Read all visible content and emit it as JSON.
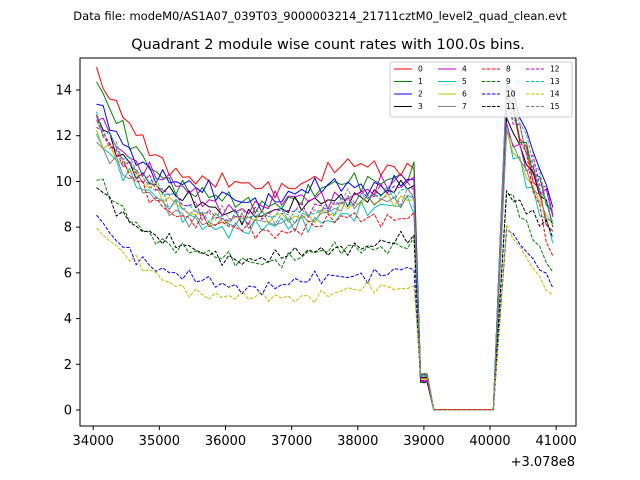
{
  "chart_data": {
    "type": "line",
    "suptitle": "Data file: modeM0/AS1A07_039T03_9000003214_21711cztM0_level2_quad_clean.evt",
    "title": "Quadrant 2 module wise count rates with 100.0s bins.",
    "xlabel": "",
    "ylabel": "",
    "x_offset_label": "+3.078e8",
    "xlim": [
      33800,
      41300
    ],
    "ylim": [
      -0.7,
      15.4
    ],
    "xticks": [
      34000,
      35000,
      36000,
      37000,
      38000,
      39000,
      40000,
      41000
    ],
    "xtick_labels": [
      "34000",
      "35000",
      "36000",
      "37000",
      "38000",
      "39000",
      "40000",
      "41000"
    ],
    "yticks": [
      0,
      2,
      4,
      6,
      8,
      10,
      12,
      14
    ],
    "ytick_labels": [
      "0",
      "2",
      "4",
      "6",
      "8",
      "10",
      "12",
      "14"
    ],
    "legend_position": "top-right",
    "x": [
      34050,
      34150,
      34250,
      34350,
      34450,
      34550,
      34650,
      34750,
      34850,
      34950,
      35050,
      35150,
      35250,
      35350,
      35450,
      35550,
      35650,
      35750,
      35850,
      35950,
      36050,
      36150,
      36250,
      36350,
      36450,
      36550,
      36650,
      36750,
      36850,
      36950,
      37050,
      37150,
      37250,
      37350,
      37450,
      37550,
      37650,
      37750,
      37850,
      37950,
      38050,
      38150,
      38250,
      38350,
      38450,
      38550,
      38650,
      38750,
      38850,
      38950,
      39050,
      39150,
      39250,
      39350,
      39450,
      39550,
      39650,
      39750,
      39850,
      39950,
      40050,
      40150,
      40250,
      40350,
      40450,
      40550,
      40650,
      40750,
      40850,
      40950
    ],
    "series": [
      {
        "name": "0",
        "color": "#ff0000",
        "dash": "solid",
        "base": 10.3,
        "dip": 1.0,
        "gap": 0.2,
        "n_amp": 0.22,
        "n_phase": 0.3,
        "start": 14.6,
        "wave_amp": 0.2,
        "pre_gap": 10.8,
        "gap_base": 0.12,
        "post_peak": 14.0,
        "post_end": 7.5
      },
      {
        "name": "1",
        "color": "#008000",
        "dash": "solid",
        "base": 9.3,
        "dip": 0.8,
        "gap": 0.2,
        "n_amp": 0.25,
        "n_phase": 1.1,
        "start": 14.2,
        "wave_amp": 0.15,
        "pre_gap": 10.5,
        "gap_base": 0.1,
        "post_peak": 13.5,
        "post_end": 8.5
      },
      {
        "name": "2",
        "color": "#0000ff",
        "dash": "solid",
        "base": 9.7,
        "dip": 0.8,
        "gap": 0.2,
        "n_amp": 0.25,
        "n_phase": 2.0,
        "start": 13.3,
        "wave_amp": 0.2,
        "pre_gap": 10.0,
        "gap_base": 0.1,
        "post_peak": 14.5,
        "post_end": 9.0
      },
      {
        "name": "3",
        "color": "#000000",
        "dash": "solid",
        "base": 8.9,
        "dip": 0.7,
        "gap": 0.2,
        "n_amp": 0.22,
        "n_phase": 2.7,
        "start": 12.8,
        "wave_amp": 0.15,
        "pre_gap": 9.8,
        "gap_base": 0.1,
        "post_peak": 12.8,
        "post_end": 8.3
      },
      {
        "name": "4",
        "color": "#c000c0",
        "dash": "solid",
        "base": 9.1,
        "dip": 0.6,
        "gap": 0.2,
        "n_amp": 0.25,
        "n_phase": 3.5,
        "start": 13.2,
        "wave_amp": 0.25,
        "pre_gap": 10.0,
        "gap_base": 0.1,
        "post_peak": 12.3,
        "post_end": 8.8
      },
      {
        "name": "5",
        "color": "#00bfbf",
        "dash": "solid",
        "base": 8.2,
        "dip": 0.7,
        "gap": 0.2,
        "n_amp": 0.25,
        "n_phase": 4.2,
        "start": 12.2,
        "wave_amp": 0.15,
        "pre_gap": 9.0,
        "gap_base": 0.1,
        "post_peak": 12.0,
        "post_end": 7.5
      },
      {
        "name": "6",
        "color": "#bfbf00",
        "dash": "solid",
        "base": 8.5,
        "dip": 0.6,
        "gap": 0.2,
        "n_amp": 0.2,
        "n_phase": 5.0,
        "start": 12.3,
        "wave_amp": 0.15,
        "pre_gap": 9.3,
        "gap_base": 0.1,
        "post_peak": 12.0,
        "post_end": 8.0
      },
      {
        "name": "7",
        "color": "#808080",
        "dash": "solid",
        "base": 8.4,
        "dip": 0.7,
        "gap": 0.2,
        "n_amp": 0.22,
        "n_phase": 5.8,
        "start": 11.8,
        "wave_amp": 0.15,
        "pre_gap": 9.4,
        "gap_base": 0.1,
        "post_peak": 12.2,
        "post_end": 8.0
      },
      {
        "name": "8",
        "color": "#ff0000",
        "dash": "dashed",
        "base": 8.0,
        "dip": 0.6,
        "gap": 0.2,
        "n_amp": 0.2,
        "n_phase": 0.7,
        "start": 12.5,
        "wave_amp": 0.15,
        "pre_gap": 8.6,
        "gap_base": 0.1,
        "post_peak": 14.3,
        "post_end": 6.5
      },
      {
        "name": "9",
        "color": "#008000",
        "dash": "dashed",
        "base": 6.8,
        "dip": 0.6,
        "gap": 0.2,
        "n_amp": 0.18,
        "n_phase": 1.5,
        "start": 10.1,
        "wave_amp": 0.12,
        "pre_gap": 7.3,
        "gap_base": 0.1,
        "post_peak": 9.7,
        "post_end": 6.0
      },
      {
        "name": "10",
        "color": "#0000ff",
        "dash": "dashed",
        "base": 5.6,
        "dip": 0.5,
        "gap": 0.2,
        "n_amp": 0.18,
        "n_phase": 2.3,
        "start": 8.4,
        "wave_amp": 0.12,
        "pre_gap": 6.2,
        "gap_base": 0.1,
        "post_peak": 8.0,
        "post_end": 5.5
      },
      {
        "name": "11",
        "color": "#000000",
        "dash": "dashed",
        "base": 6.8,
        "dip": 0.5,
        "gap": 0.2,
        "n_amp": 0.18,
        "n_phase": 3.1,
        "start": 9.9,
        "wave_amp": 0.12,
        "pre_gap": 7.5,
        "gap_base": 0.1,
        "post_peak": 9.5,
        "post_end": 7.8
      },
      {
        "name": "12",
        "color": "#c000c0",
        "dash": "dashed",
        "base": 8.7,
        "dip": 0.7,
        "gap": 0.2,
        "n_amp": 0.22,
        "n_phase": 3.9,
        "start": 12.7,
        "wave_amp": 0.15,
        "pre_gap": 9.8,
        "gap_base": 0.1,
        "post_peak": 13.5,
        "post_end": 8.8
      },
      {
        "name": "13",
        "color": "#00bfbf",
        "dash": "dashed",
        "base": 8.6,
        "dip": 0.7,
        "gap": 0.2,
        "n_amp": 0.22,
        "n_phase": 4.6,
        "start": 13.0,
        "wave_amp": 0.15,
        "pre_gap": 9.6,
        "gap_base": 0.1,
        "post_peak": 13.8,
        "post_end": 8.2
      },
      {
        "name": "14",
        "color": "#bfbf00",
        "dash": "dashed",
        "base": 5.0,
        "dip": 0.4,
        "gap": 0.2,
        "n_amp": 0.16,
        "n_phase": 5.4,
        "start": 8.1,
        "wave_amp": 0.1,
        "pre_gap": 5.4,
        "gap_base": 0.1,
        "post_peak": 8.0,
        "post_end": 4.9
      },
      {
        "name": "15",
        "color": "#808080",
        "dash": "dashed",
        "base": 8.7,
        "dip": 0.7,
        "gap": 0.2,
        "n_amp": 0.22,
        "n_phase": 6.1,
        "start": 12.5,
        "wave_amp": 0.15,
        "pre_gap": 9.6,
        "gap_base": 0.1,
        "post_peak": 14.4,
        "post_end": 8.5
      }
    ]
  }
}
